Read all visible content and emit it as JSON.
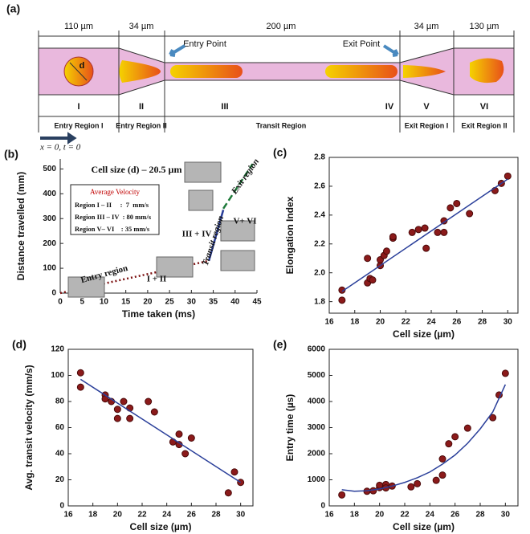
{
  "diagram": {
    "label": "(a)",
    "dimensions": [
      "110 µm",
      "34 µm",
      "200 µm",
      "34 µm",
      "130 µm"
    ],
    "points": [
      "Entry Point",
      "Exit Point"
    ],
    "cell_label": "d",
    "regions": [
      "I",
      "II",
      "III",
      "IV",
      "V",
      "VI"
    ],
    "region_names": [
      "Entry Region I",
      "Entry Region II",
      "Transit Region",
      "Exit Region I",
      "Exit Region II"
    ],
    "origin": "x = 0,  t = 0"
  },
  "chart_data": [
    {
      "type": "line",
      "panel": "(b)",
      "box": false,
      "xlabel": "Time taken (ms)",
      "ylabel": "Distance travelled (mm)",
      "xlim": [
        0,
        45
      ],
      "xticks": [
        0,
        5,
        10,
        15,
        20,
        25,
        30,
        35,
        40,
        45
      ],
      "ylim": [
        0,
        540
      ],
      "yticks": [
        0,
        100,
        200,
        300,
        400,
        500
      ],
      "series": [
        {
          "color": "#7b1010",
          "style": "dotted",
          "x": [
            0,
            34
          ],
          "values": [
            0,
            130
          ]
        },
        {
          "color": "#2a3f9a",
          "style": "solid",
          "x": [
            34,
            37.3
          ],
          "values": [
            130,
            335
          ]
        },
        {
          "color": "#1e7a3a",
          "style": "dashed",
          "x": [
            37.3,
            44
          ],
          "values": [
            340,
            520
          ]
        }
      ],
      "annotations": [
        "Cell size (d) – 20.5 µm",
        "Entry region",
        "I + II",
        "Transit region",
        "III + IV",
        "Exit region",
        "V+ VI"
      ],
      "legend_box": {
        "title": "Average Velocity",
        "rows": [
          "Region I – II     :  7  mm/s",
          "Region III – IV  : 80 mm/s",
          "Region V– VI    : 35 mm/s"
        ]
      }
    },
    {
      "type": "scatter",
      "panel": "(c)",
      "box": true,
      "xlabel": "Cell size (µm)",
      "ylabel": "Elongation Index",
      "xlim": [
        16,
        30.8
      ],
      "xticks": [
        16,
        18,
        20,
        22,
        24,
        26,
        28,
        30
      ],
      "ylim": [
        1.72,
        2.8
      ],
      "yticks": [
        1.8,
        {
          "value": 2,
          "label": "2.0"
        },
        2.2,
        2.4,
        2.6,
        2.8
      ],
      "series": [
        {
          "style": "points",
          "color": "#8b1a1a",
          "x": [
            17,
            17,
            19,
            19,
            19.2,
            19.4,
            20,
            20,
            20.3,
            20.5,
            21,
            21,
            22.5,
            23,
            23.5,
            23.6,
            24.5,
            25,
            25,
            25.5,
            26,
            27,
            29,
            29.5,
            30
          ],
          "values": [
            1.88,
            1.81,
            1.93,
            2.1,
            1.96,
            1.95,
            2.05,
            2.09,
            2.12,
            2.15,
            2.24,
            2.25,
            2.28,
            2.3,
            2.31,
            2.17,
            2.28,
            2.28,
            2.36,
            2.45,
            2.48,
            2.41,
            2.57,
            2.62,
            2.67
          ]
        },
        {
          "style": "solid",
          "color": "#2a3f9a",
          "x": [
            17,
            30
          ],
          "values": [
            1.87,
            2.65
          ]
        }
      ]
    },
    {
      "type": "scatter",
      "panel": "(d)",
      "box": true,
      "xlabel": "Cell size (µm)",
      "ylabel": "Avg. transit velocity (mm/s)",
      "xlim": [
        16,
        31
      ],
      "xticks": [
        16,
        18,
        20,
        22,
        24,
        26,
        28,
        30
      ],
      "ylim": [
        0,
        120
      ],
      "yticks": [
        0,
        20,
        40,
        60,
        80,
        100,
        120
      ],
      "series": [
        {
          "style": "points",
          "color": "#8b1a1a",
          "x": [
            17,
            17,
            19,
            19,
            19.5,
            20,
            20,
            20.5,
            21,
            21,
            22.5,
            23,
            24.5,
            25,
            25,
            25.5,
            26,
            29,
            29.5,
            30
          ],
          "values": [
            102,
            91,
            85,
            82,
            80,
            74,
            67,
            80,
            75,
            67,
            80,
            72,
            49,
            55,
            47,
            40,
            52,
            10,
            26,
            18
          ]
        },
        {
          "style": "solid",
          "color": "#2a3f9a",
          "x": [
            17,
            30
          ],
          "values": [
            97,
            18
          ]
        }
      ]
    },
    {
      "type": "scatter",
      "panel": "(e)",
      "box": true,
      "xlabel": "Cell size (µm)",
      "ylabel": "Entry time (µs)",
      "xlim": [
        16,
        31
      ],
      "xticks": [
        16,
        18,
        20,
        22,
        24,
        26,
        28,
        30
      ],
      "ylim": [
        0,
        6000
      ],
      "yticks": [
        0,
        1000,
        2000,
        3000,
        4000,
        5000,
        6000
      ],
      "series": [
        {
          "style": "points",
          "color": "#8b1a1a",
          "x": [
            17,
            19,
            19.5,
            20,
            20,
            20.5,
            20.5,
            21,
            22.5,
            23,
            24.5,
            25,
            25,
            25.5,
            26,
            27,
            29,
            29.5,
            30
          ],
          "values": [
            420,
            560,
            580,
            700,
            790,
            820,
            690,
            760,
            730,
            850,
            980,
            1180,
            1800,
            2380,
            2650,
            2980,
            3380,
            4250,
            5080
          ]
        },
        {
          "style": "solid",
          "color": "#2a3f9a",
          "x": [
            17,
            18,
            19,
            20,
            21,
            22,
            23,
            24,
            25,
            26,
            27,
            28,
            29,
            30
          ],
          "values": [
            620,
            560,
            580,
            650,
            760,
            900,
            1080,
            1300,
            1600,
            1950,
            2400,
            2950,
            3600,
            4650
          ]
        }
      ]
    }
  ]
}
